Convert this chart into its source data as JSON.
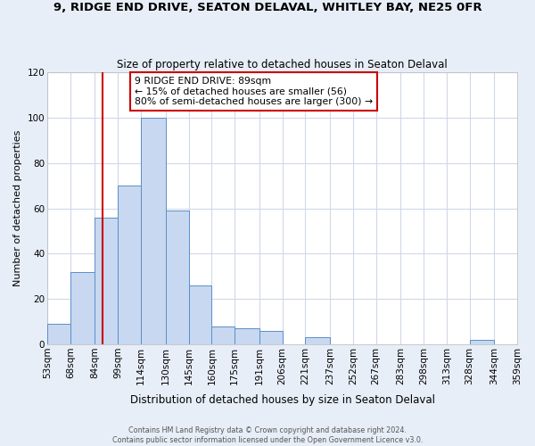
{
  "title": "9, RIDGE END DRIVE, SEATON DELAVAL, WHITLEY BAY, NE25 0FR",
  "subtitle": "Size of property relative to detached houses in Seaton Delaval",
  "xlabel": "Distribution of detached houses by size in Seaton Delaval",
  "ylabel": "Number of detached properties",
  "bin_edges": [
    53,
    68,
    84,
    99,
    114,
    130,
    145,
    160,
    175,
    191,
    206,
    221,
    237,
    252,
    267,
    283,
    298,
    313,
    328,
    344,
    359
  ],
  "bin_labels": [
    "53sqm",
    "68sqm",
    "84sqm",
    "99sqm",
    "114sqm",
    "130sqm",
    "145sqm",
    "160sqm",
    "175sqm",
    "191sqm",
    "206sqm",
    "221sqm",
    "237sqm",
    "252sqm",
    "267sqm",
    "283sqm",
    "298sqm",
    "313sqm",
    "328sqm",
    "344sqm",
    "359sqm"
  ],
  "counts": [
    9,
    32,
    56,
    70,
    100,
    59,
    26,
    8,
    7,
    6,
    0,
    3,
    0,
    0,
    0,
    0,
    0,
    0,
    2,
    0
  ],
  "bar_fill": "#c8d8f0",
  "bar_edge": "#5b8fc9",
  "vline_x": 89,
  "vline_color": "#cc0000",
  "ylim": [
    0,
    120
  ],
  "yticks": [
    0,
    20,
    40,
    60,
    80,
    100,
    120
  ],
  "annotation_title": "9 RIDGE END DRIVE: 89sqm",
  "annotation_line1": "← 15% of detached houses are smaller (56)",
  "annotation_line2": "80% of semi-detached houses are larger (300) →",
  "annotation_box_color": "#ffffff",
  "annotation_box_edge": "#cc0000",
  "footer_line1": "Contains HM Land Registry data © Crown copyright and database right 2024.",
  "footer_line2": "Contains public sector information licensed under the Open Government Licence v3.0.",
  "fig_background_color": "#e8eef8",
  "ax_background_color": "#ffffff",
  "grid_color": "#d0d8e8"
}
